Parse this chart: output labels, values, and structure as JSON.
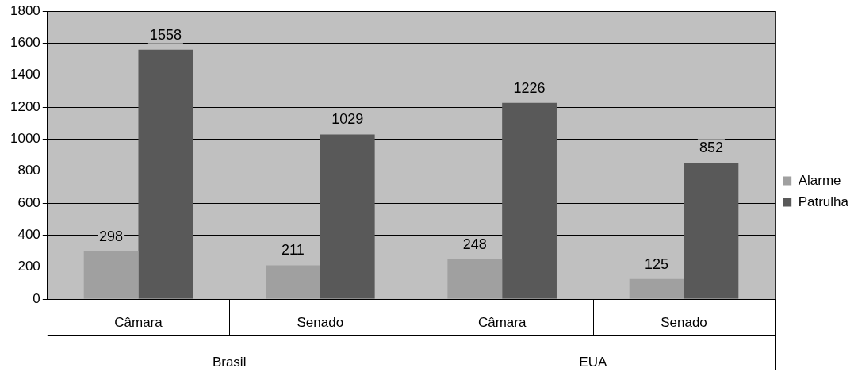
{
  "chart_data": {
    "type": "bar",
    "categories": [
      "Câmara",
      "Senado",
      "Câmara",
      "Senado"
    ],
    "series": [
      {
        "name": "Alarme",
        "color": "#a0a0a0",
        "values": [
          298,
          211,
          248,
          125
        ]
      },
      {
        "name": "Patrulha",
        "color": "#595959",
        "values": [
          1558,
          1029,
          1226,
          852
        ]
      }
    ],
    "annotations": [
      "Brasil",
      "EUA"
    ],
    "ylim": [
      0,
      1800
    ],
    "yticks": [
      0,
      200,
      400,
      600,
      800,
      1000,
      1200,
      1400,
      1600,
      1800
    ],
    "grid": "y",
    "legend": "right",
    "data_labels": true
  }
}
